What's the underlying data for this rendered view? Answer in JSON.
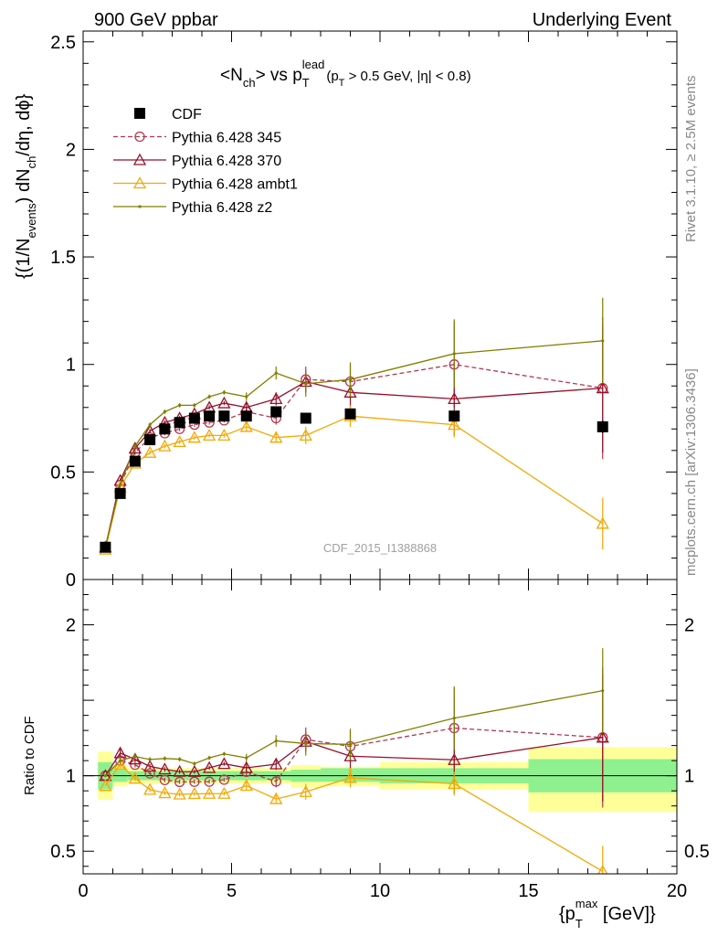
{
  "header": {
    "left": "900 GeV ppbar",
    "right": "Underlying Event"
  },
  "chart_data": {
    "type": "line",
    "title_parts": {
      "main": "<N",
      "main_sub": "ch",
      "mid": "> vs p",
      "mid_sub": "T",
      "mid_sup": "lead",
      "cut_open": "(p",
      "cut_sub": "T",
      "cut_rest": " > 0.5 GeV, |η| < 0.8)"
    },
    "ylabel_parts": {
      "a": "{(1/N",
      "a_sub": "events",
      "b": ") dN",
      "b_sub": "ch",
      "c": "/dη, dϕ}"
    },
    "ratio_ylabel": "Ratio to CDF",
    "xlabel_parts": {
      "a": "{p",
      "a_sub": "T",
      "a_sup": "max",
      "b": " [GeV]}"
    },
    "watermark": "CDF_2015_I1388868",
    "side_labels": {
      "top": "Rivet 3.1.10, ≥ 2.5M events",
      "bottom": "mcplots.cern.ch [arXiv:1306.3436]"
    },
    "xlim": [
      0,
      20
    ],
    "ylim_main": [
      0,
      2.55
    ],
    "ylim_ratio": [
      0.35,
      2.3
    ],
    "x_ticks": [
      "0",
      "5",
      "10",
      "15",
      "20"
    ],
    "y_ticks_main": [
      "0",
      "0.5",
      "1",
      "1.5",
      "2",
      "2.5"
    ],
    "y_ticks_ratio": [
      "0.5",
      "1",
      "2"
    ],
    "legend_position": "top-left",
    "x": [
      0.75,
      1.25,
      1.75,
      2.25,
      2.75,
      3.25,
      3.75,
      4.25,
      4.75,
      5.5,
      6.5,
      7.5,
      9.0,
      12.5,
      17.5
    ],
    "series": [
      {
        "name": "CDF",
        "color": "#000000",
        "style": "data",
        "values": [
          0.15,
          0.4,
          0.55,
          0.65,
          0.7,
          0.73,
          0.75,
          0.76,
          0.76,
          0.76,
          0.78,
          0.75,
          0.77,
          0.76,
          0.71
        ],
        "errors": [
          0.01,
          0.01,
          0.01,
          0.01,
          0.01,
          0.01,
          0.01,
          0.01,
          0.01,
          0.01,
          0.01,
          0.01,
          0.02,
          0.02,
          0.03
        ]
      },
      {
        "name": "Pythia 6.428 345",
        "color": "#b5374d",
        "style": "dashed",
        "marker": "circle",
        "values": [
          0.15,
          0.44,
          0.59,
          0.66,
          0.68,
          0.7,
          0.72,
          0.73,
          0.74,
          0.78,
          0.75,
          0.93,
          0.92,
          1.0,
          0.89
        ],
        "errors": [
          0.0,
          0.01,
          0.01,
          0.01,
          0.01,
          0.01,
          0.01,
          0.01,
          0.01,
          0.02,
          0.03,
          0.06,
          0.08,
          0.2,
          0.33
        ]
      },
      {
        "name": "Pythia 6.428 370",
        "color": "#96102a",
        "style": "solid",
        "marker": "triangle",
        "values": [
          0.15,
          0.46,
          0.61,
          0.69,
          0.73,
          0.75,
          0.77,
          0.8,
          0.82,
          0.8,
          0.84,
          0.92,
          0.87,
          0.84,
          0.89
        ],
        "errors": [
          0.0,
          0.01,
          0.01,
          0.01,
          0.01,
          0.01,
          0.01,
          0.01,
          0.01,
          0.02,
          0.03,
          0.05,
          0.08,
          0.17,
          0.3
        ]
      },
      {
        "name": "Pythia 6.428 ambt1",
        "color": "#f5a700",
        "style": "solid",
        "marker": "triangle",
        "values": [
          0.14,
          0.43,
          0.54,
          0.59,
          0.62,
          0.64,
          0.66,
          0.67,
          0.67,
          0.71,
          0.66,
          0.67,
          0.76,
          0.72,
          0.26
        ],
        "errors": [
          0.0,
          0.01,
          0.01,
          0.01,
          0.01,
          0.01,
          0.01,
          0.01,
          0.01,
          0.02,
          0.02,
          0.04,
          0.05,
          0.06,
          0.12
        ]
      },
      {
        "name": "Pythia 6.428 z2",
        "color": "#808000",
        "style": "solid",
        "marker": "dot",
        "values": [
          0.15,
          0.44,
          0.62,
          0.72,
          0.78,
          0.81,
          0.81,
          0.85,
          0.87,
          0.85,
          0.96,
          0.91,
          0.93,
          1.05,
          1.11
        ],
        "errors": [
          0.0,
          0.01,
          0.01,
          0.01,
          0.01,
          0.01,
          0.01,
          0.01,
          0.01,
          0.02,
          0.03,
          0.06,
          0.08,
          0.16,
          0.2
        ]
      }
    ],
    "ratio_band_colors": {
      "inner": "#8ff08f",
      "outer": "#ffff99"
    },
    "ratio_bands": [
      {
        "x0": 0.5,
        "x1": 1.0,
        "inner": [
          0.91,
          1.09
        ],
        "outer": [
          0.84,
          1.16
        ]
      },
      {
        "x0": 1.0,
        "x1": 1.5,
        "inner": [
          0.96,
          1.04
        ],
        "outer": [
          0.93,
          1.07
        ]
      },
      {
        "x0": 1.5,
        "x1": 5.0,
        "inner": [
          0.97,
          1.03
        ],
        "outer": [
          0.95,
          1.05
        ]
      },
      {
        "x0": 5.0,
        "x1": 7.0,
        "inner": [
          0.97,
          1.03
        ],
        "outer": [
          0.95,
          1.05
        ]
      },
      {
        "x0": 7.0,
        "x1": 8.0,
        "inner": [
          0.96,
          1.04
        ],
        "outer": [
          0.92,
          1.07
        ]
      },
      {
        "x0": 8.0,
        "x1": 10.0,
        "inner": [
          0.96,
          1.05
        ],
        "outer": [
          0.93,
          1.06
        ]
      },
      {
        "x0": 10.0,
        "x1": 15.0,
        "inner": [
          0.95,
          1.05
        ],
        "outer": [
          0.91,
          1.09
        ]
      },
      {
        "x0": 15.0,
        "x1": 20.0,
        "inner": [
          0.89,
          1.11
        ],
        "outer": [
          0.76,
          1.19
        ]
      }
    ]
  }
}
